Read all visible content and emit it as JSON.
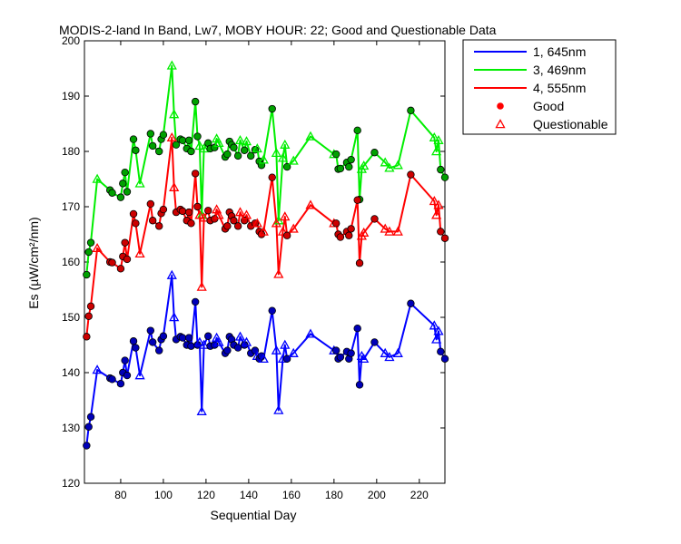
{
  "chart_data": {
    "type": "line",
    "title": "MODIS-2-land In Band,  Lw7, MOBY HOUR: 22;  Good and Questionable Data",
    "xlabel": "Sequential Day",
    "ylabel": "Es (µW/cm²/nm)",
    "xlim": [
      63,
      232
    ],
    "ylim": [
      120,
      200
    ],
    "xticks": [
      80,
      100,
      120,
      140,
      160,
      180,
      200,
      220
    ],
    "yticks": [
      120,
      130,
      140,
      150,
      160,
      170,
      180,
      190,
      200
    ],
    "grid": false,
    "legend_position": "outside-top-right",
    "legend": {
      "entries": [
        {
          "label": "1, 645nm",
          "kind": "line",
          "color": "#0000ff"
        },
        {
          "label": "3, 469nm",
          "kind": "line",
          "color": "#00ee00"
        },
        {
          "label": "4, 555nm",
          "kind": "line",
          "color": "#ff0000"
        },
        {
          "label": "Good",
          "kind": "circle",
          "color": "#ff0000"
        },
        {
          "label": "Questionable",
          "kind": "triangle",
          "color": "#ff0000"
        }
      ]
    },
    "x": [
      64,
      65,
      66,
      69,
      75,
      76,
      80,
      81,
      82,
      83,
      86,
      87,
      89,
      94,
      95,
      98,
      99,
      100,
      104,
      105,
      106,
      108,
      109,
      111,
      112,
      113,
      115,
      116,
      117,
      118,
      119,
      121,
      122,
      124,
      125,
      126,
      129,
      130,
      131,
      132,
      133,
      135,
      136,
      138,
      139,
      141,
      143,
      144,
      145,
      146,
      147,
      151,
      153,
      154,
      156,
      157,
      158,
      161,
      169,
      180,
      181,
      182,
      183,
      186,
      187,
      188,
      191,
      192,
      193,
      194,
      199,
      204,
      206,
      210,
      216,
      227,
      228,
      229,
      230,
      232
    ],
    "quality": [
      "G",
      "G",
      "G",
      "Q",
      "G",
      "G",
      "G",
      "G",
      "G",
      "G",
      "G",
      "G",
      "Q",
      "G",
      "G",
      "G",
      "G",
      "G",
      "Q",
      "Q",
      "G",
      "G",
      "G",
      "G",
      "G",
      "G",
      "G",
      "G",
      "Q",
      "Q",
      "Q",
      "G",
      "G",
      "G",
      "Q",
      "Q",
      "G",
      "G",
      "G",
      "G",
      "G",
      "G",
      "Q",
      "G",
      "Q",
      "G",
      "G",
      "Q",
      "G",
      "G",
      "Q",
      "G",
      "Q",
      "Q",
      "Q",
      "Q",
      "G",
      "Q",
      "Q",
      "Q",
      "G",
      "G",
      "G",
      "G",
      "G",
      "G",
      "G",
      "G",
      "Q",
      "Q",
      "G",
      "Q",
      "Q",
      "Q",
      "G",
      "Q",
      "Q",
      "Q",
      "G",
      "G"
    ],
    "series": [
      {
        "name": "1, 645nm",
        "color": "#0000ff",
        "marker_fill": "#0000b8",
        "values": [
          126.8,
          130.2,
          132.0,
          140.5,
          139.0,
          138.8,
          138.0,
          140.0,
          142.2,
          139.5,
          145.7,
          144.5,
          139.5,
          147.6,
          145.5,
          144.0,
          146.0,
          146.6,
          157.6,
          150.0,
          146.0,
          146.5,
          146.3,
          145.0,
          146.3,
          144.8,
          152.8,
          145.0,
          145.5,
          133.0,
          145.0,
          146.6,
          144.8,
          145.0,
          146.3,
          145.5,
          143.5,
          144.0,
          146.5,
          146.0,
          145.0,
          144.5,
          146.5,
          145.0,
          145.5,
          143.5,
          144.0,
          143.0,
          142.5,
          143.0,
          142.5,
          151.2,
          144.0,
          133.2,
          142.5,
          145.0,
          142.5,
          143.5,
          147.0,
          144.0,
          144.0,
          142.5,
          142.8,
          143.8,
          142.5,
          143.5,
          148.0,
          137.8,
          143.0,
          142.5,
          145.5,
          143.5,
          142.8,
          143.5,
          152.5,
          148.5,
          146.0,
          147.5,
          143.8,
          142.5
        ]
      },
      {
        "name": "3, 469nm",
        "color": "#00ee00",
        "marker_fill": "#00a000",
        "values": [
          157.7,
          161.8,
          163.5,
          175.0,
          173.0,
          172.5,
          171.7,
          174.2,
          176.2,
          172.7,
          182.2,
          180.2,
          174.2,
          183.2,
          181.0,
          180.0,
          182.2,
          183.0,
          195.5,
          186.7,
          181.2,
          182.2,
          182.0,
          180.5,
          182.0,
          180.0,
          189.0,
          182.7,
          181.0,
          168.5,
          180.5,
          181.5,
          180.5,
          180.7,
          182.3,
          181.5,
          179.0,
          179.5,
          181.8,
          181.2,
          180.7,
          179.2,
          182.0,
          180.2,
          181.8,
          179.2,
          180.3,
          180.5,
          178.2,
          177.5,
          178.5,
          187.7,
          179.7,
          167.5,
          178.8,
          181.2,
          177.2,
          178.3,
          182.7,
          179.5,
          179.5,
          176.8,
          176.9,
          178.0,
          177.2,
          178.5,
          183.8,
          171.3,
          176.8,
          177.4,
          179.8,
          178.0,
          177.0,
          177.5,
          187.4,
          182.5,
          180.0,
          182.0,
          176.7,
          175.3
        ]
      },
      {
        "name": "4, 555nm",
        "color": "#ff0000",
        "marker_fill": "#cc0000",
        "values": [
          146.5,
          150.2,
          152.0,
          162.5,
          160.0,
          159.9,
          158.8,
          161.0,
          163.5,
          160.5,
          168.7,
          167.0,
          161.5,
          170.5,
          167.5,
          166.5,
          168.8,
          169.5,
          182.5,
          173.5,
          169.0,
          169.5,
          169.2,
          167.5,
          169.0,
          167.0,
          176.0,
          170.0,
          168.5,
          155.5,
          168.0,
          169.3,
          167.5,
          167.8,
          169.5,
          168.5,
          166.0,
          166.5,
          169.0,
          168.3,
          167.5,
          166.5,
          169.0,
          167.5,
          168.5,
          166.5,
          167.0,
          167.0,
          165.5,
          165.0,
          165.5,
          175.3,
          167.0,
          157.8,
          165.5,
          168.2,
          164.8,
          166.0,
          170.3,
          167.0,
          167.0,
          165.0,
          164.5,
          165.5,
          164.8,
          166.0,
          171.2,
          159.8,
          164.7,
          165.3,
          167.8,
          166.0,
          165.5,
          165.5,
          175.8,
          171.0,
          168.5,
          170.3,
          165.5,
          164.3
        ]
      }
    ]
  }
}
